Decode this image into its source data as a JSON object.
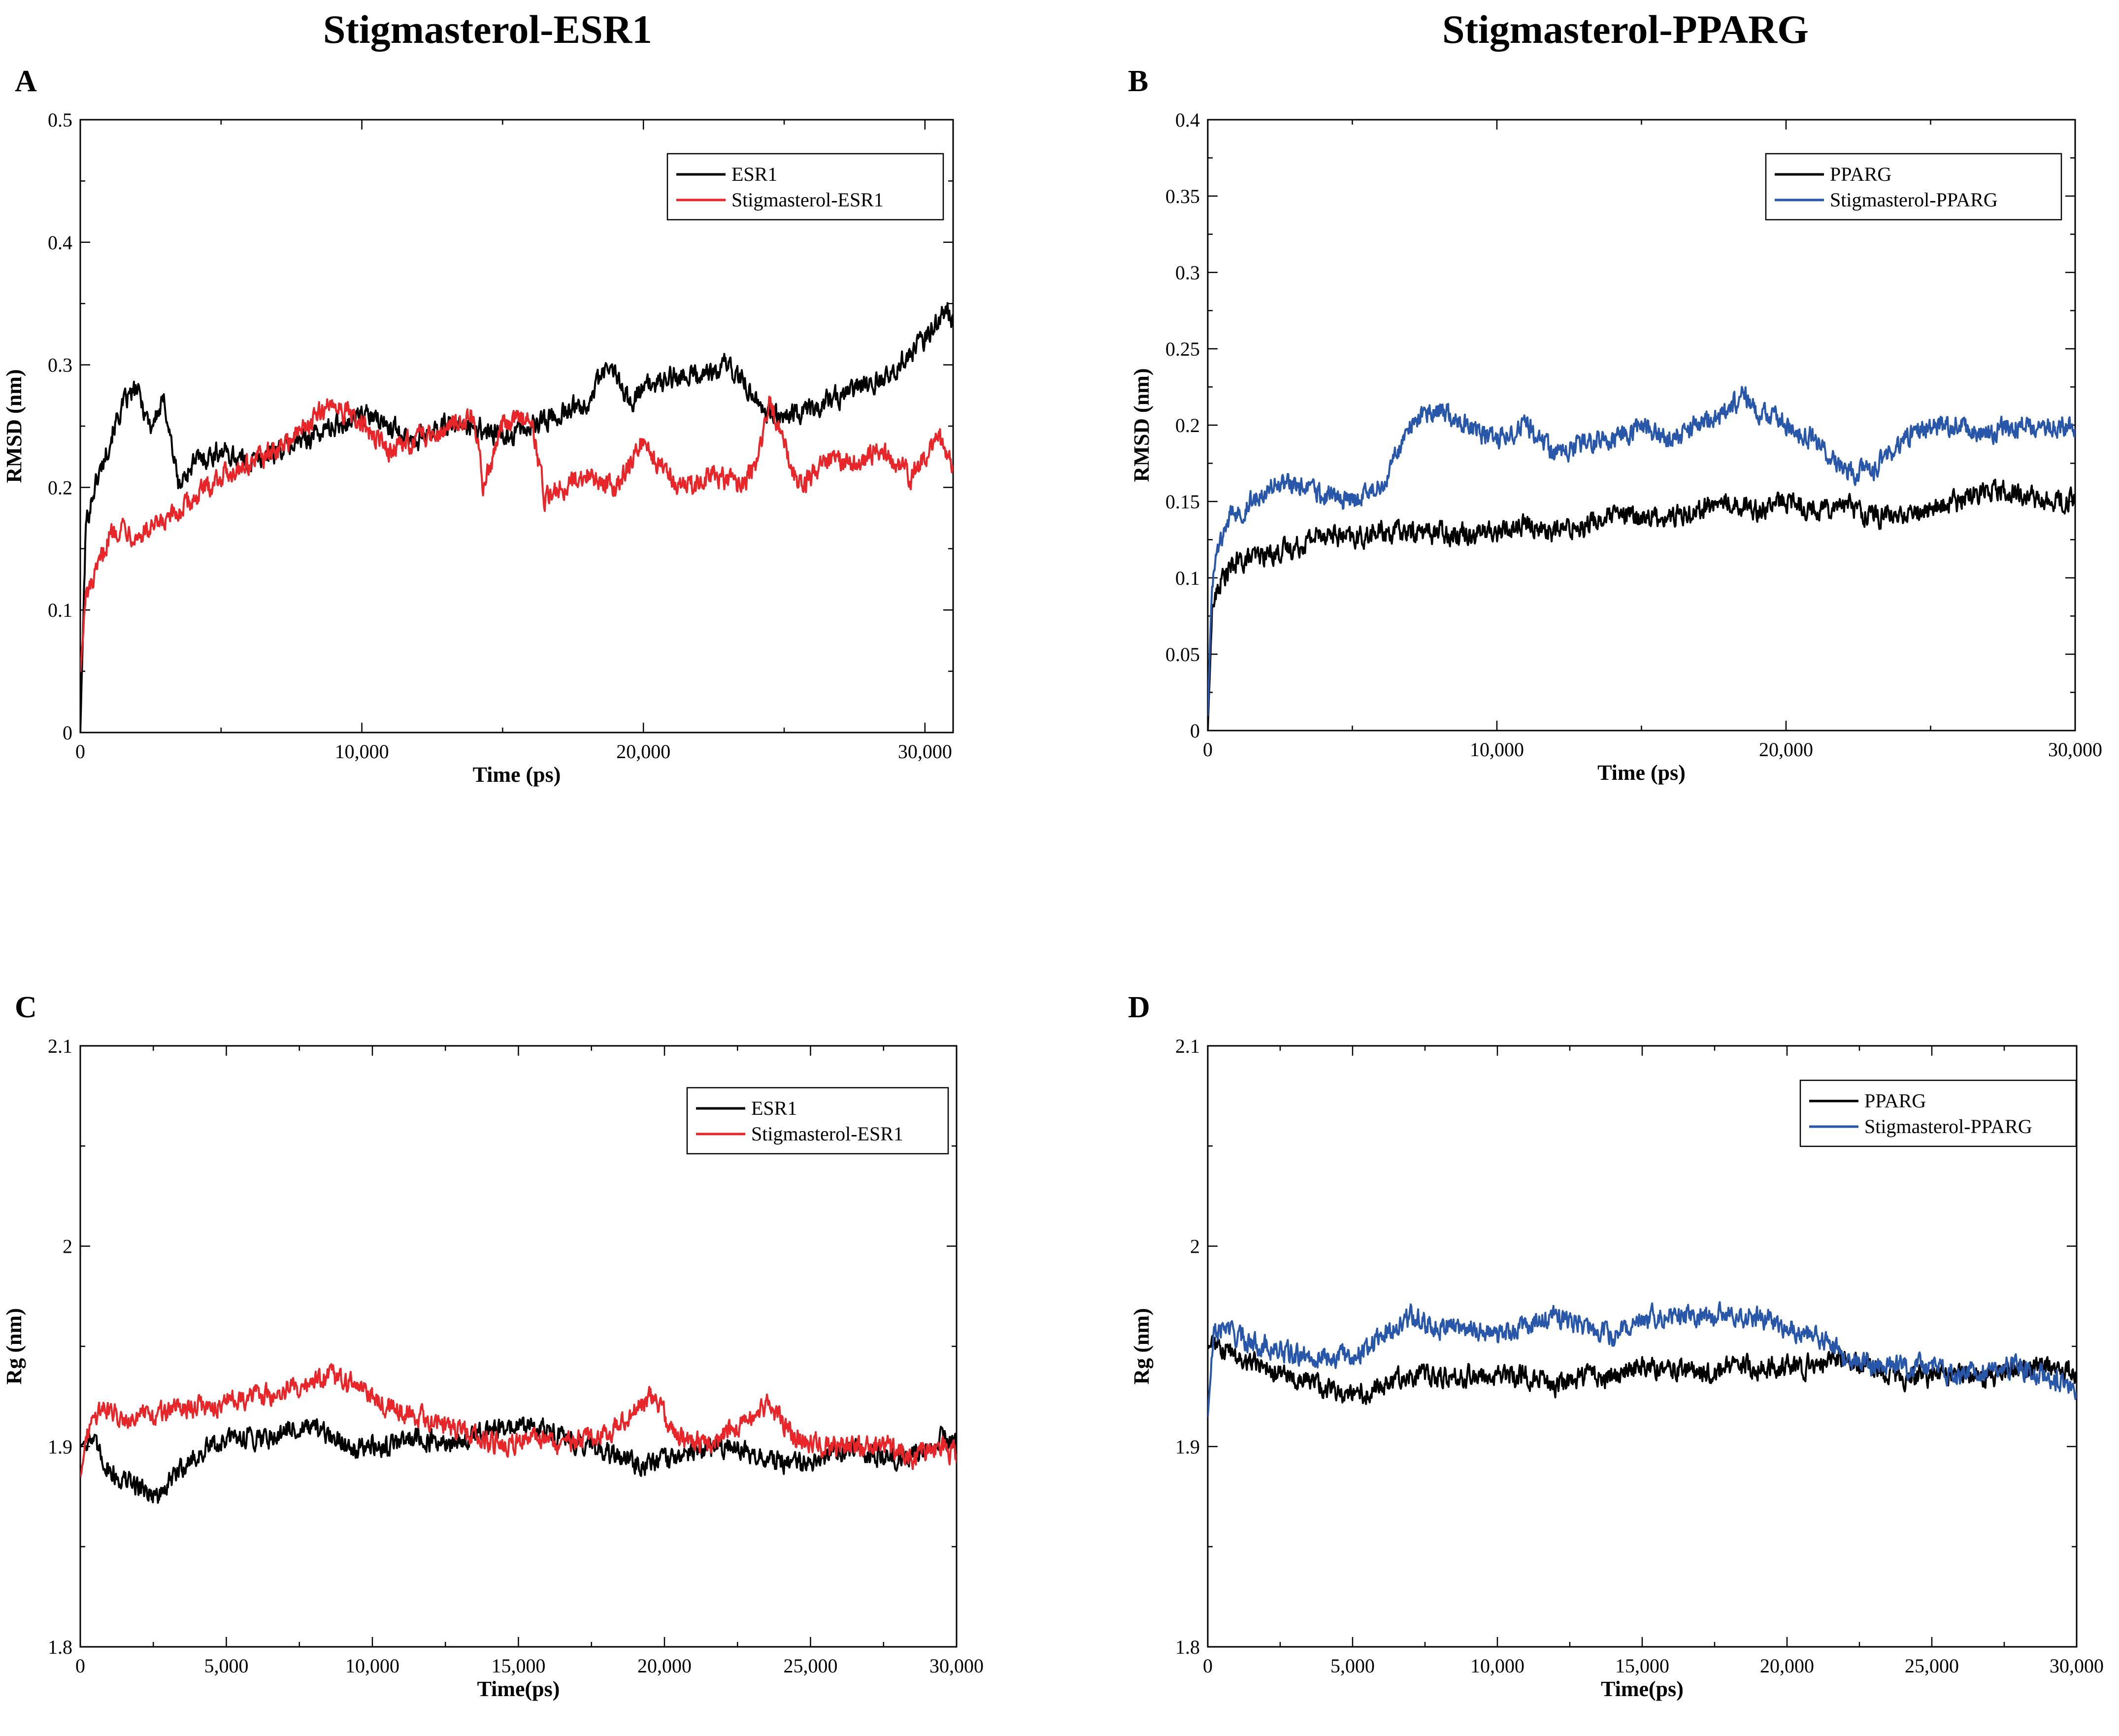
{
  "titles": {
    "left": "Stigmasterol-ESR1",
    "right": "Stigmasterol-PPARG"
  },
  "panels": {
    "A": "A",
    "B": "B",
    "C": "C",
    "D": "D"
  },
  "colors": {
    "black": "#000000",
    "red": "#e8262a",
    "blue": "#2856a8"
  },
  "chart_data": [
    {
      "id": "A",
      "type": "line",
      "title": "",
      "xlabel": "Time (ps)",
      "ylabel": "RMSD (nm)",
      "xlim": [
        0,
        31000
      ],
      "ylim": [
        0,
        0.5
      ],
      "xticks": [
        10000,
        20000,
        30000
      ],
      "xtick_labels": [
        "10,000",
        "20,000",
        "30,000"
      ],
      "yticks": [
        0,
        0.1,
        0.2,
        0.3,
        0.4,
        0.5
      ],
      "ytick_labels": [
        "0",
        "0.1",
        "0.2",
        "0.3",
        "0.4",
        "0.5"
      ],
      "legend": "top-right",
      "series": [
        {
          "name": "ESR1",
          "color": "#000000",
          "x": [
            0,
            200,
            500,
            800,
            1200,
            1600,
            2000,
            2500,
            3000,
            3500,
            4000,
            5000,
            6000,
            7000,
            8000,
            9000,
            10000,
            11000,
            12000,
            13000,
            14000,
            15000,
            16000,
            17000,
            18000,
            18800,
            19500,
            20000,
            21000,
            22000,
            23000,
            23800,
            24500,
            25500,
            26500,
            27500,
            28500,
            29500,
            30300,
            30800,
            31000
          ],
          "y": [
            0,
            0.17,
            0.2,
            0.22,
            0.25,
            0.27,
            0.28,
            0.25,
            0.27,
            0.2,
            0.22,
            0.23,
            0.22,
            0.23,
            0.24,
            0.25,
            0.26,
            0.25,
            0.24,
            0.25,
            0.25,
            0.24,
            0.25,
            0.26,
            0.27,
            0.3,
            0.27,
            0.28,
            0.29,
            0.29,
            0.3,
            0.28,
            0.26,
            0.26,
            0.27,
            0.28,
            0.29,
            0.31,
            0.33,
            0.35,
            0.33
          ]
        },
        {
          "name": "Stigmasterol-ESR1",
          "color": "#e8262a",
          "x": [
            0,
            200,
            600,
            1000,
            1500,
            2000,
            3000,
            4000,
            5000,
            6000,
            7000,
            8000,
            9000,
            10000,
            11000,
            12000,
            13000,
            14000,
            14300,
            15000,
            16000,
            16500,
            17000,
            18000,
            19000,
            20000,
            20500,
            21500,
            22500,
            23500,
            24000,
            24500,
            25500,
            26500,
            27500,
            28500,
            29500,
            30500,
            31000
          ],
          "y": [
            0.05,
            0.11,
            0.13,
            0.16,
            0.17,
            0.16,
            0.17,
            0.19,
            0.21,
            0.22,
            0.23,
            0.25,
            0.27,
            0.25,
            0.23,
            0.24,
            0.25,
            0.26,
            0.2,
            0.25,
            0.26,
            0.19,
            0.2,
            0.21,
            0.2,
            0.24,
            0.22,
            0.2,
            0.21,
            0.2,
            0.22,
            0.27,
            0.2,
            0.22,
            0.22,
            0.23,
            0.21,
            0.24,
            0.22
          ]
        }
      ]
    },
    {
      "id": "B",
      "type": "line",
      "title": "",
      "xlabel": "Time (ps)",
      "ylabel": "RMSD (nm)",
      "xlim": [
        0,
        30000
      ],
      "ylim": [
        0,
        0.4
      ],
      "xticks": [
        10000,
        20000,
        30000
      ],
      "xtick_labels": [
        "10,000",
        "20,000",
        "30,000"
      ],
      "yticks": [
        0,
        0.05,
        0.1,
        0.15,
        0.2,
        0.25,
        0.3,
        0.35,
        0.4
      ],
      "ytick_labels": [
        "0",
        "0.05",
        "0.1",
        "0.15",
        "0.2",
        "0.25",
        "0.3",
        "0.35",
        "0.4"
      ],
      "legend": "top-right",
      "series": [
        {
          "name": "PPARG",
          "color": "#000000",
          "x": [
            0,
            150,
            500,
            1000,
            2000,
            3000,
            4000,
            5000,
            6000,
            7000,
            8000,
            9000,
            10000,
            11000,
            12000,
            13000,
            14000,
            15000,
            16000,
            17000,
            18000,
            19000,
            20000,
            21000,
            22000,
            23000,
            24000,
            25000,
            26000,
            27000,
            28000,
            29000,
            30000
          ],
          "y": [
            0,
            0.08,
            0.1,
            0.11,
            0.115,
            0.12,
            0.13,
            0.125,
            0.13,
            0.13,
            0.13,
            0.13,
            0.13,
            0.135,
            0.13,
            0.135,
            0.14,
            0.14,
            0.14,
            0.145,
            0.15,
            0.145,
            0.15,
            0.145,
            0.15,
            0.14,
            0.14,
            0.145,
            0.15,
            0.16,
            0.155,
            0.15,
            0.15
          ]
        },
        {
          "name": "Stigmasterol-PPARG",
          "color": "#2856a8",
          "x": [
            0,
            150,
            400,
            800,
            1500,
            2000,
            3000,
            4000,
            5000,
            6000,
            6500,
            7000,
            7500,
            8000,
            9000,
            10000,
            11000,
            12000,
            13000,
            14000,
            15000,
            16000,
            17000,
            18000,
            18500,
            19000,
            20000,
            21000,
            22000,
            23000,
            24000,
            25000,
            26000,
            27000,
            28000,
            29000,
            30000
          ],
          "y": [
            0.01,
            0.1,
            0.12,
            0.14,
            0.15,
            0.16,
            0.16,
            0.155,
            0.15,
            0.16,
            0.18,
            0.2,
            0.21,
            0.21,
            0.2,
            0.19,
            0.2,
            0.18,
            0.19,
            0.19,
            0.2,
            0.19,
            0.2,
            0.21,
            0.22,
            0.21,
            0.2,
            0.19,
            0.17,
            0.17,
            0.19,
            0.2,
            0.2,
            0.195,
            0.2,
            0.2,
            0.2
          ]
        }
      ]
    },
    {
      "id": "C",
      "type": "line",
      "title": "",
      "xlabel": "Time(ps)",
      "ylabel": "Rg (nm)",
      "xlim": [
        0,
        30000
      ],
      "ylim": [
        1.8,
        2.1
      ],
      "xticks": [
        0,
        5000,
        10000,
        15000,
        20000,
        25000,
        30000
      ],
      "xtick_labels": [
        "0",
        "5,000",
        "10,000",
        "15,000",
        "20,000",
        "25,000",
        "30,000"
      ],
      "yticks": [
        1.8,
        1.9,
        2.0,
        2.1
      ],
      "ytick_labels": [
        "1.8",
        "1.9",
        "2",
        "2.1"
      ],
      "legend": "top-right",
      "series": [
        {
          "name": "ESR1",
          "color": "#000000",
          "x": [
            0,
            300,
            700,
            1200,
            2000,
            2700,
            3500,
            4500,
            5500,
            6500,
            7500,
            8500,
            9500,
            10500,
            11500,
            12500,
            13500,
            14500,
            15500,
            16500,
            17500,
            18500,
            19500,
            20500,
            21500,
            22500,
            23500,
            24500,
            25500,
            26500,
            27500,
            28500,
            29500,
            30000
          ],
          "y": [
            1.9,
            1.905,
            1.895,
            1.885,
            1.88,
            1.875,
            1.89,
            1.9,
            1.905,
            1.905,
            1.91,
            1.905,
            1.9,
            1.9,
            1.905,
            1.9,
            1.905,
            1.91,
            1.91,
            1.905,
            1.9,
            1.895,
            1.89,
            1.895,
            1.9,
            1.9,
            1.895,
            1.89,
            1.895,
            1.9,
            1.895,
            1.895,
            1.905,
            1.9
          ]
        },
        {
          "name": "Stigmasterol-ESR1",
          "color": "#e8262a",
          "x": [
            0,
            300,
            700,
            1500,
            2500,
            3500,
            4500,
            5500,
            6500,
            7500,
            8500,
            9500,
            10500,
            11500,
            12500,
            13500,
            14500,
            15500,
            16500,
            17500,
            18500,
            19500,
            20500,
            21500,
            22500,
            23500,
            24500,
            25500,
            26500,
            27500,
            28500,
            29500,
            30000
          ],
          "y": [
            1.885,
            1.91,
            1.92,
            1.915,
            1.915,
            1.92,
            1.92,
            1.925,
            1.925,
            1.93,
            1.935,
            1.93,
            1.92,
            1.915,
            1.91,
            1.905,
            1.9,
            1.905,
            1.9,
            1.905,
            1.91,
            1.925,
            1.905,
            1.9,
            1.91,
            1.92,
            1.905,
            1.9,
            1.9,
            1.9,
            1.895,
            1.9,
            1.895
          ]
        }
      ]
    },
    {
      "id": "D",
      "type": "line",
      "title": "",
      "xlabel": "Time(ps)",
      "ylabel": "Rg (nm)",
      "xlim": [
        0,
        30000
      ],
      "ylim": [
        1.8,
        2.1
      ],
      "xticks": [
        0,
        5000,
        10000,
        15000,
        20000,
        25000,
        30000
      ],
      "xtick_labels": [
        "0",
        "5,000",
        "10,000",
        "15,000",
        "20,000",
        "25,000",
        "30,000"
      ],
      "yticks": [
        1.8,
        1.9,
        2.0,
        2.1
      ],
      "ytick_labels": [
        "1.8",
        "1.9",
        "2",
        "2.1"
      ],
      "legend": "top-right",
      "series": [
        {
          "name": "PPARG",
          "color": "#000000",
          "x": [
            0,
            300,
            1000,
            2000,
            3000,
            4000,
            5000,
            6000,
            7000,
            8000,
            9000,
            10000,
            11000,
            12000,
            13000,
            14000,
            15000,
            16000,
            17000,
            18000,
            19000,
            20000,
            21000,
            22000,
            23000,
            24000,
            25000,
            26000,
            27000,
            28000,
            29000,
            30000
          ],
          "y": [
            1.95,
            1.95,
            1.945,
            1.94,
            1.935,
            1.93,
            1.925,
            1.93,
            1.935,
            1.935,
            1.935,
            1.935,
            1.935,
            1.93,
            1.935,
            1.935,
            1.94,
            1.94,
            1.935,
            1.94,
            1.94,
            1.94,
            1.94,
            1.945,
            1.94,
            1.935,
            1.935,
            1.935,
            1.935,
            1.94,
            1.94,
            1.935
          ]
        },
        {
          "name": "Stigmasterol-PPARG",
          "color": "#2856a8",
          "x": [
            0,
            200,
            600,
            1000,
            2000,
            3000,
            4000,
            5000,
            6000,
            7000,
            8000,
            9000,
            10000,
            11000,
            12000,
            13000,
            14000,
            15000,
            16000,
            17000,
            18000,
            19000,
            20000,
            21000,
            22000,
            23000,
            24000,
            25000,
            26000,
            27000,
            28000,
            29000,
            30000
          ],
          "y": [
            1.915,
            1.955,
            1.96,
            1.955,
            1.95,
            1.945,
            1.945,
            1.945,
            1.955,
            1.965,
            1.96,
            1.96,
            1.955,
            1.96,
            1.965,
            1.96,
            1.955,
            1.965,
            1.965,
            1.965,
            1.965,
            1.965,
            1.96,
            1.955,
            1.945,
            1.94,
            1.94,
            1.94,
            1.935,
            1.94,
            1.94,
            1.935,
            1.93
          ]
        }
      ]
    }
  ]
}
